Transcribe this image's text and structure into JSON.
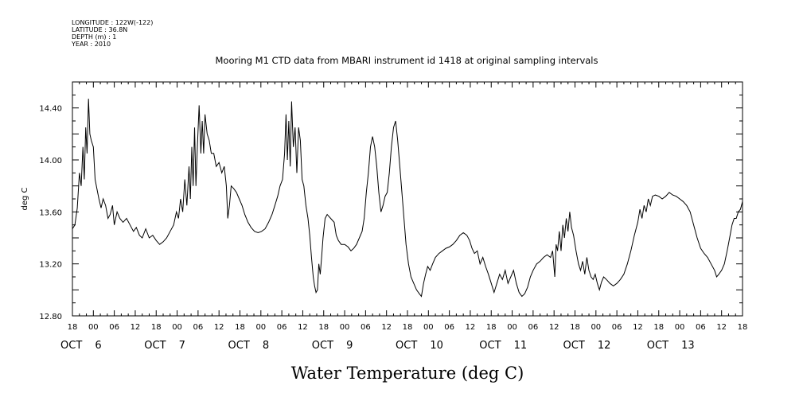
{
  "header": {
    "lines": [
      "LONGITUDE : 122W(-122)",
      "LATITUDE : 36.8N",
      "DEPTH (m) : 1",
      "YEAR : 2010"
    ]
  },
  "chart_data": {
    "type": "line",
    "title": "Mooring M1 CTD data from MBARI instrument id 1418 at original sampling intervals",
    "xlabel": "Water Temperature (deg C)",
    "ylabel": "deg C",
    "ylim": [
      12.8,
      14.6
    ],
    "yticks": [
      "12.80",
      "13.20",
      "13.60",
      "14.00",
      "14.40"
    ],
    "x_unit": "hours since OCT 5 18:00 2010",
    "xlim": [
      0,
      192
    ],
    "hour_labels": [
      "18",
      "00",
      "06",
      "12",
      "18",
      "00",
      "06",
      "12",
      "18",
      "00",
      "06",
      "12",
      "18",
      "00",
      "06",
      "12",
      "18",
      "00",
      "06",
      "12",
      "18",
      "00",
      "06",
      "12",
      "18",
      "00",
      "06",
      "12",
      "18",
      "00",
      "06",
      "12",
      "18"
    ],
    "day_labels": [
      {
        "day": "OCT",
        "num": "6"
      },
      {
        "day": "OCT",
        "num": "7"
      },
      {
        "day": "OCT",
        "num": "8"
      },
      {
        "day": "OCT",
        "num": "9"
      },
      {
        "day": "OCT",
        "num": "10"
      },
      {
        "day": "OCT",
        "num": "11"
      },
      {
        "day": "OCT",
        "num": "12"
      },
      {
        "day": "OCT",
        "num": "13"
      }
    ],
    "series": [
      {
        "values": [
          [
            0,
            13.47
          ],
          [
            0.7,
            13.5
          ],
          [
            1.4,
            13.63
          ],
          [
            2,
            13.9
          ],
          [
            2.5,
            13.8
          ],
          [
            3.0,
            14.1
          ],
          [
            3.4,
            13.85
          ],
          [
            3.8,
            14.25
          ],
          [
            4.2,
            14.05
          ],
          [
            4.6,
            14.47
          ],
          [
            5.0,
            14.2
          ],
          [
            5.4,
            14.15
          ],
          [
            6,
            14.1
          ],
          [
            6.5,
            13.85
          ],
          [
            7,
            13.78
          ],
          [
            7.6,
            13.7
          ],
          [
            8.2,
            13.63
          ],
          [
            8.8,
            13.7
          ],
          [
            9.5,
            13.65
          ],
          [
            10.2,
            13.55
          ],
          [
            10.8,
            13.58
          ],
          [
            11.5,
            13.65
          ],
          [
            12,
            13.5
          ],
          [
            12.8,
            13.6
          ],
          [
            13.6,
            13.55
          ],
          [
            14.5,
            13.52
          ],
          [
            15.5,
            13.55
          ],
          [
            16.5,
            13.5
          ],
          [
            17.5,
            13.45
          ],
          [
            18.3,
            13.48
          ],
          [
            19.2,
            13.42
          ],
          [
            20,
            13.4
          ],
          [
            21,
            13.47
          ],
          [
            22,
            13.4
          ],
          [
            23,
            13.42
          ],
          [
            24,
            13.38
          ],
          [
            25,
            13.35
          ],
          [
            26,
            13.37
          ],
          [
            27,
            13.4
          ],
          [
            28,
            13.45
          ],
          [
            29,
            13.5
          ],
          [
            29.8,
            13.6
          ],
          [
            30.4,
            13.55
          ],
          [
            31,
            13.7
          ],
          [
            31.6,
            13.6
          ],
          [
            32.2,
            13.85
          ],
          [
            32.8,
            13.65
          ],
          [
            33.4,
            13.95
          ],
          [
            33.8,
            13.7
          ],
          [
            34.2,
            14.1
          ],
          [
            34.6,
            13.8
          ],
          [
            35,
            14.25
          ],
          [
            35.4,
            13.8
          ],
          [
            35.8,
            14.1
          ],
          [
            36.3,
            14.42
          ],
          [
            36.8,
            14.05
          ],
          [
            37.2,
            14.3
          ],
          [
            37.6,
            14.05
          ],
          [
            38,
            14.35
          ],
          [
            38.6,
            14.2
          ],
          [
            39.2,
            14.15
          ],
          [
            39.8,
            14.05
          ],
          [
            40.5,
            14.05
          ],
          [
            41.2,
            13.95
          ],
          [
            42,
            13.98
          ],
          [
            42.8,
            13.9
          ],
          [
            43.5,
            13.95
          ],
          [
            44.1,
            13.8
          ],
          [
            44.5,
            13.55
          ],
          [
            45,
            13.65
          ],
          [
            45.5,
            13.8
          ],
          [
            46.2,
            13.78
          ],
          [
            47,
            13.75
          ],
          [
            47.8,
            13.7
          ],
          [
            48.6,
            13.65
          ],
          [
            49.4,
            13.58
          ],
          [
            50.3,
            13.52
          ],
          [
            51.2,
            13.48
          ],
          [
            52.2,
            13.45
          ],
          [
            53.2,
            13.44
          ],
          [
            54.2,
            13.45
          ],
          [
            55.2,
            13.47
          ],
          [
            56.2,
            13.52
          ],
          [
            57.2,
            13.58
          ],
          [
            58,
            13.65
          ],
          [
            58.8,
            13.72
          ],
          [
            59.5,
            13.8
          ],
          [
            60.2,
            13.85
          ],
          [
            60.8,
            14.05
          ],
          [
            61.2,
            14.35
          ],
          [
            61.6,
            14.0
          ],
          [
            62,
            14.3
          ],
          [
            62.4,
            13.95
          ],
          [
            62.8,
            14.45
          ],
          [
            63.3,
            14.1
          ],
          [
            63.8,
            14.25
          ],
          [
            64.3,
            13.9
          ],
          [
            64.8,
            14.25
          ],
          [
            65.3,
            14.15
          ],
          [
            65.8,
            13.85
          ],
          [
            66.3,
            13.8
          ],
          [
            66.9,
            13.65
          ],
          [
            67.5,
            13.55
          ],
          [
            68,
            13.42
          ],
          [
            68.5,
            13.25
          ],
          [
            69,
            13.1
          ],
          [
            69.4,
            13.03
          ],
          [
            69.8,
            12.98
          ],
          [
            70.2,
            13.0
          ],
          [
            70.6,
            13.2
          ],
          [
            71,
            13.12
          ],
          [
            71.4,
            13.25
          ],
          [
            71.8,
            13.4
          ],
          [
            72.4,
            13.55
          ],
          [
            73,
            13.58
          ],
          [
            74,
            13.55
          ],
          [
            75,
            13.52
          ],
          [
            75.6,
            13.42
          ],
          [
            76.2,
            13.38
          ],
          [
            77,
            13.35
          ],
          [
            78,
            13.35
          ],
          [
            79,
            13.33
          ],
          [
            79.8,
            13.3
          ],
          [
            80.6,
            13.32
          ],
          [
            81.4,
            13.35
          ],
          [
            82.2,
            13.4
          ],
          [
            83,
            13.45
          ],
          [
            83.6,
            13.55
          ],
          [
            84.2,
            13.75
          ],
          [
            84.8,
            13.9
          ],
          [
            85.4,
            14.1
          ],
          [
            86,
            14.18
          ],
          [
            86.6,
            14.1
          ],
          [
            87.2,
            13.95
          ],
          [
            87.8,
            13.75
          ],
          [
            88.4,
            13.6
          ],
          [
            89,
            13.65
          ],
          [
            89.6,
            13.72
          ],
          [
            90.2,
            13.75
          ],
          [
            90.8,
            13.9
          ],
          [
            91.4,
            14.1
          ],
          [
            92,
            14.25
          ],
          [
            92.6,
            14.3
          ],
          [
            93.2,
            14.15
          ],
          [
            93.8,
            13.95
          ],
          [
            94.4,
            13.75
          ],
          [
            95,
            13.55
          ],
          [
            95.6,
            13.35
          ],
          [
            96.3,
            13.2
          ],
          [
            97,
            13.1
          ],
          [
            97.8,
            13.05
          ],
          [
            98.6,
            13.0
          ],
          [
            99.4,
            12.97
          ],
          [
            100,
            12.95
          ],
          [
            100.6,
            13.05
          ],
          [
            101.2,
            13.12
          ],
          [
            101.8,
            13.18
          ],
          [
            102.5,
            13.15
          ],
          [
            103.2,
            13.2
          ],
          [
            104,
            13.25
          ],
          [
            105,
            13.28
          ],
          [
            106,
            13.3
          ],
          [
            107,
            13.32
          ],
          [
            108,
            13.33
          ],
          [
            109,
            13.35
          ],
          [
            110,
            13.38
          ],
          [
            111,
            13.42
          ],
          [
            112,
            13.44
          ],
          [
            113,
            13.42
          ],
          [
            113.8,
            13.38
          ],
          [
            114.5,
            13.32
          ],
          [
            115.2,
            13.28
          ],
          [
            116,
            13.3
          ],
          [
            116.8,
            13.2
          ],
          [
            117.6,
            13.25
          ],
          [
            118.4,
            13.18
          ],
          [
            119.2,
            13.12
          ],
          [
            120,
            13.05
          ],
          [
            120.8,
            12.98
          ],
          [
            121.6,
            13.05
          ],
          [
            122.4,
            13.12
          ],
          [
            123.2,
            13.08
          ],
          [
            124,
            13.15
          ],
          [
            124.8,
            13.05
          ],
          [
            125.6,
            13.1
          ],
          [
            126.4,
            13.15
          ],
          [
            127.2,
            13.05
          ],
          [
            128,
            12.98
          ],
          [
            128.8,
            12.95
          ],
          [
            129.6,
            12.97
          ],
          [
            130.4,
            13.02
          ],
          [
            131.2,
            13.1
          ],
          [
            132,
            13.15
          ],
          [
            133,
            13.2
          ],
          [
            134,
            13.22
          ],
          [
            135,
            13.25
          ],
          [
            136,
            13.27
          ],
          [
            137,
            13.25
          ],
          [
            137.6,
            13.3
          ],
          [
            138.2,
            13.1
          ],
          [
            138.6,
            13.35
          ],
          [
            139,
            13.3
          ],
          [
            139.5,
            13.45
          ],
          [
            140,
            13.3
          ],
          [
            140.5,
            13.5
          ],
          [
            141,
            13.4
          ],
          [
            141.5,
            13.55
          ],
          [
            142,
            13.45
          ],
          [
            142.5,
            13.6
          ],
          [
            143,
            13.48
          ],
          [
            143.6,
            13.42
          ],
          [
            144.3,
            13.3
          ],
          [
            145,
            13.2
          ],
          [
            145.6,
            13.15
          ],
          [
            146.2,
            13.22
          ],
          [
            146.8,
            13.12
          ],
          [
            147.4,
            13.25
          ],
          [
            148,
            13.15
          ],
          [
            148.6,
            13.1
          ],
          [
            149.2,
            13.08
          ],
          [
            149.8,
            13.12
          ],
          [
            150.4,
            13.05
          ],
          [
            151,
            13.0
          ],
          [
            151.6,
            13.06
          ],
          [
            152.2,
            13.1
          ],
          [
            153,
            13.08
          ],
          [
            154,
            13.05
          ],
          [
            155,
            13.03
          ],
          [
            156,
            13.05
          ],
          [
            157,
            13.08
          ],
          [
            158,
            13.12
          ],
          [
            159,
            13.2
          ],
          [
            160,
            13.3
          ],
          [
            161,
            13.42
          ],
          [
            162,
            13.52
          ],
          [
            162.6,
            13.62
          ],
          [
            163.2,
            13.55
          ],
          [
            163.8,
            13.65
          ],
          [
            164.4,
            13.6
          ],
          [
            165,
            13.7
          ],
          [
            165.6,
            13.65
          ],
          [
            166.2,
            13.72
          ],
          [
            167,
            13.73
          ],
          [
            168,
            13.72
          ],
          [
            169,
            13.7
          ],
          [
            170,
            13.72
          ],
          [
            171,
            13.75
          ],
          [
            172,
            13.73
          ],
          [
            173,
            13.72
          ],
          [
            174,
            13.7
          ],
          [
            175,
            13.68
          ],
          [
            176,
            13.65
          ],
          [
            177,
            13.6
          ],
          [
            178,
            13.5
          ],
          [
            179,
            13.4
          ],
          [
            180,
            13.32
          ],
          [
            181,
            13.28
          ],
          [
            182,
            13.25
          ],
          [
            183,
            13.2
          ],
          [
            184,
            13.15
          ],
          [
            184.6,
            13.1
          ],
          [
            185.2,
            13.12
          ],
          [
            186,
            13.15
          ],
          [
            186.8,
            13.2
          ],
          [
            187.6,
            13.3
          ],
          [
            188.3,
            13.4
          ],
          [
            189,
            13.5
          ],
          [
            189.6,
            13.55
          ],
          [
            190.2,
            13.55
          ],
          [
            190.8,
            13.6
          ],
          [
            191.4,
            13.62
          ],
          [
            192,
            13.68
          ]
        ]
      }
    ]
  }
}
